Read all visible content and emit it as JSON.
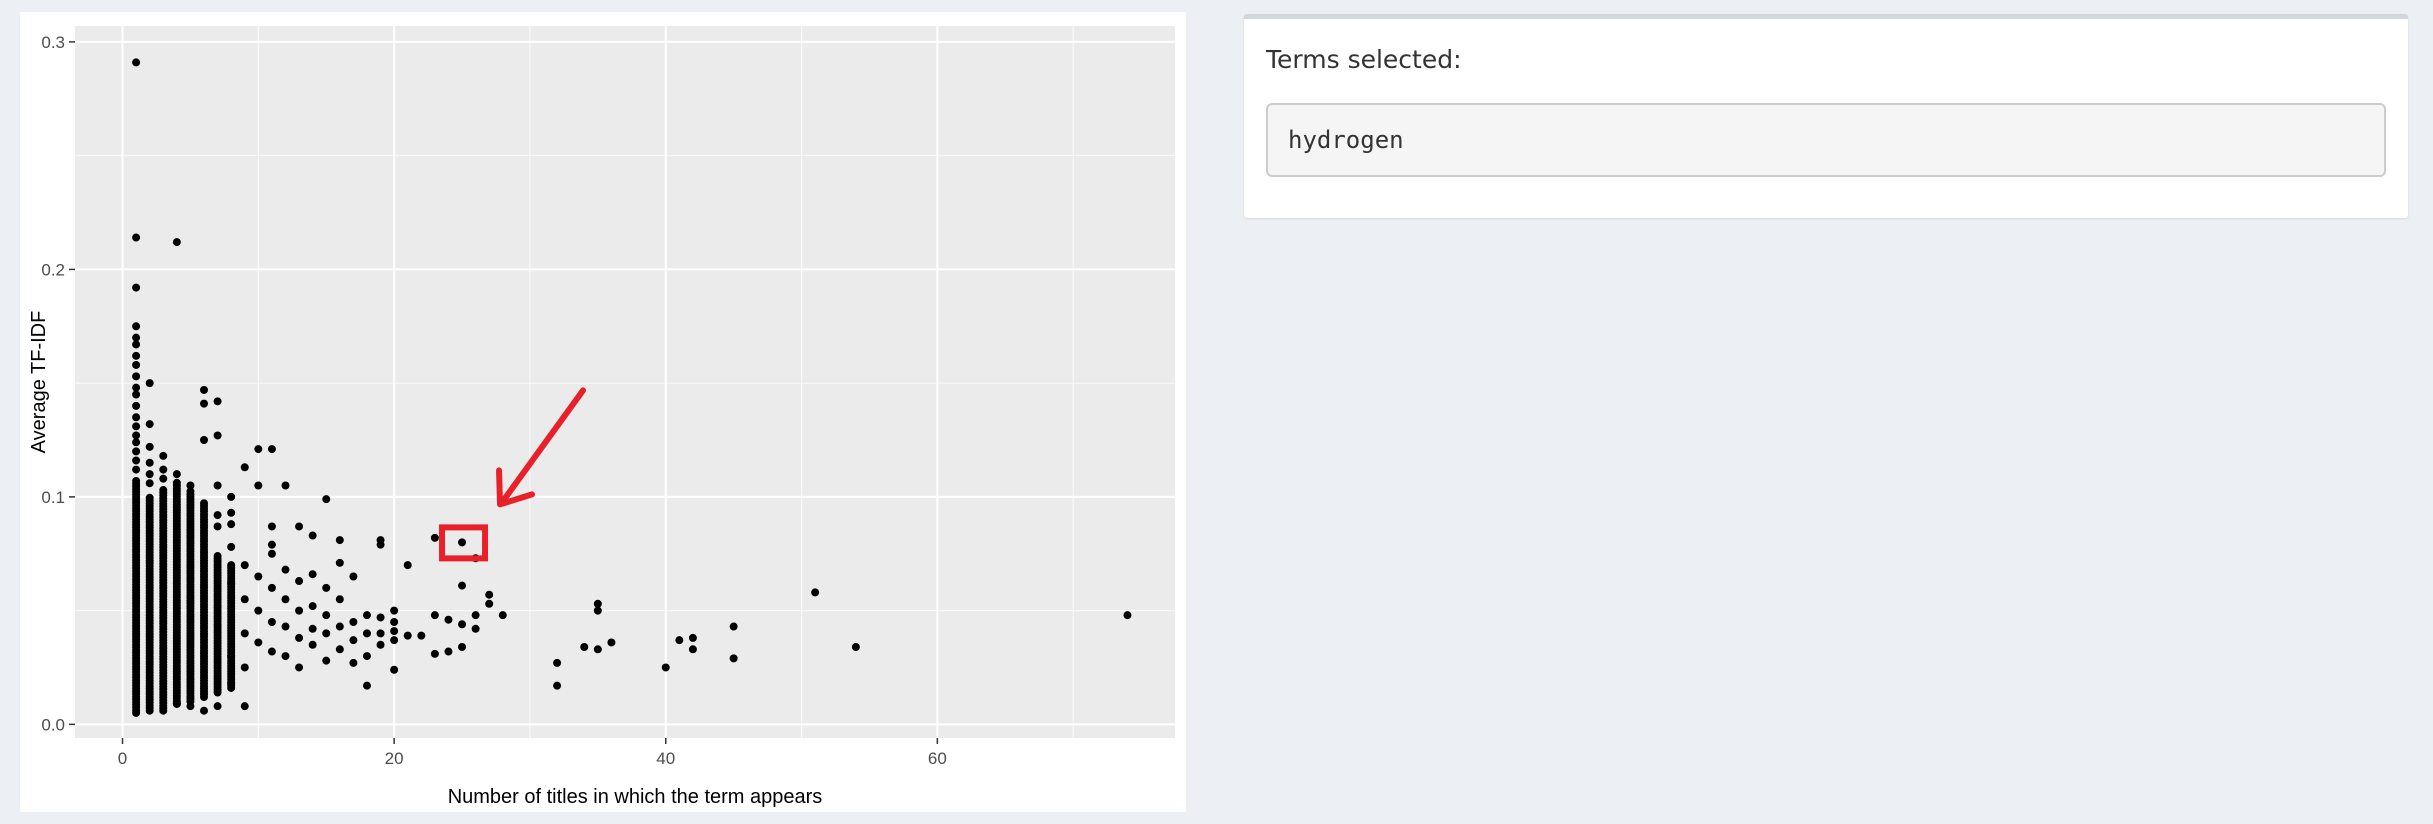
{
  "chart_data": {
    "type": "scatter",
    "xlabel": "Number of titles in which the term appears",
    "ylabel": "Average TF-IDF",
    "xlim": [
      -3.5,
      77.5
    ],
    "ylim": [
      -0.006,
      0.307
    ],
    "x_ticks": [
      0,
      20,
      40,
      60
    ],
    "y_ticks": [
      0.0,
      0.1,
      0.2,
      0.3
    ],
    "y_tick_labels": [
      "0.0",
      "0.1",
      "0.2",
      "0.3"
    ],
    "grid": true,
    "point_color": "#000000",
    "panel_color": "#ebebeb",
    "highlight": {
      "x": 25,
      "y": 0.08,
      "color": "#e8202a"
    },
    "dense_columns": [
      {
        "x": 1,
        "ymin": 0.005,
        "ymax": 0.108
      },
      {
        "x": 2,
        "ymin": 0.006,
        "ymax": 0.1
      },
      {
        "x": 3,
        "ymin": 0.007,
        "ymax": 0.104
      },
      {
        "x": 4,
        "ymin": 0.009,
        "ymax": 0.107
      },
      {
        "x": 5,
        "ymin": 0.01,
        "ymax": 0.103
      },
      {
        "x": 6,
        "ymin": 0.012,
        "ymax": 0.098
      },
      {
        "x": 7,
        "ymin": 0.014,
        "ymax": 0.074
      },
      {
        "x": 8,
        "ymin": 0.016,
        "ymax": 0.07
      }
    ],
    "points": [
      {
        "x": 1,
        "y": 0.291
      },
      {
        "x": 1,
        "y": 0.214
      },
      {
        "x": 4,
        "y": 0.212
      },
      {
        "x": 1,
        "y": 0.192
      },
      {
        "x": 1,
        "y": 0.175
      },
      {
        "x": 1,
        "y": 0.17
      },
      {
        "x": 1,
        "y": 0.167
      },
      {
        "x": 1,
        "y": 0.162
      },
      {
        "x": 1,
        "y": 0.158
      },
      {
        "x": 1,
        "y": 0.153
      },
      {
        "x": 1,
        "y": 0.148
      },
      {
        "x": 1,
        "y": 0.145
      },
      {
        "x": 1,
        "y": 0.14
      },
      {
        "x": 1,
        "y": 0.135
      },
      {
        "x": 1,
        "y": 0.131
      },
      {
        "x": 1,
        "y": 0.127
      },
      {
        "x": 1,
        "y": 0.124
      },
      {
        "x": 1,
        "y": 0.12
      },
      {
        "x": 1,
        "y": 0.116
      },
      {
        "x": 1,
        "y": 0.112
      },
      {
        "x": 2,
        "y": 0.15
      },
      {
        "x": 2,
        "y": 0.132
      },
      {
        "x": 2,
        "y": 0.122
      },
      {
        "x": 2,
        "y": 0.115
      },
      {
        "x": 2,
        "y": 0.11
      },
      {
        "x": 2,
        "y": 0.106
      },
      {
        "x": 3,
        "y": 0.118
      },
      {
        "x": 3,
        "y": 0.112
      },
      {
        "x": 3,
        "y": 0.108
      },
      {
        "x": 4,
        "y": 0.11
      },
      {
        "x": 6,
        "y": 0.147
      },
      {
        "x": 6,
        "y": 0.141
      },
      {
        "x": 7,
        "y": 0.142
      },
      {
        "x": 7,
        "y": 0.127
      },
      {
        "x": 6,
        "y": 0.125
      },
      {
        "x": 5,
        "y": 0.105
      },
      {
        "x": 7,
        "y": 0.105
      },
      {
        "x": 7,
        "y": 0.092
      },
      {
        "x": 7,
        "y": 0.087
      },
      {
        "x": 8,
        "y": 0.1
      },
      {
        "x": 8,
        "y": 0.093
      },
      {
        "x": 8,
        "y": 0.088
      },
      {
        "x": 8,
        "y": 0.078
      },
      {
        "x": 9,
        "y": 0.113
      },
      {
        "x": 10,
        "y": 0.121
      },
      {
        "x": 11,
        "y": 0.121
      },
      {
        "x": 10,
        "y": 0.105
      },
      {
        "x": 11,
        "y": 0.087
      },
      {
        "x": 11,
        "y": 0.075
      },
      {
        "x": 11,
        "y": 0.079
      },
      {
        "x": 13,
        "y": 0.087
      },
      {
        "x": 12,
        "y": 0.105
      },
      {
        "x": 15,
        "y": 0.099
      },
      {
        "x": 14,
        "y": 0.083
      },
      {
        "x": 16,
        "y": 0.081
      },
      {
        "x": 16,
        "y": 0.071
      },
      {
        "x": 17,
        "y": 0.065
      },
      {
        "x": 19,
        "y": 0.081
      },
      {
        "x": 19,
        "y": 0.079
      },
      {
        "x": 21,
        "y": 0.07
      },
      {
        "x": 23,
        "y": 0.082
      },
      {
        "x": 25,
        "y": 0.08
      },
      {
        "x": 26,
        "y": 0.073
      },
      {
        "x": 25,
        "y": 0.061
      },
      {
        "x": 27,
        "y": 0.057
      },
      {
        "x": 27,
        "y": 0.053
      },
      {
        "x": 26,
        "y": 0.048
      },
      {
        "x": 28,
        "y": 0.048
      },
      {
        "x": 24,
        "y": 0.046
      },
      {
        "x": 25,
        "y": 0.044
      },
      {
        "x": 26,
        "y": 0.042
      },
      {
        "x": 23,
        "y": 0.048
      },
      {
        "x": 22,
        "y": 0.039
      },
      {
        "x": 21,
        "y": 0.039
      },
      {
        "x": 23,
        "y": 0.031
      },
      {
        "x": 24,
        "y": 0.032
      },
      {
        "x": 25,
        "y": 0.034
      },
      {
        "x": 20,
        "y": 0.05
      },
      {
        "x": 20,
        "y": 0.045
      },
      {
        "x": 20,
        "y": 0.041
      },
      {
        "x": 20,
        "y": 0.037
      },
      {
        "x": 19,
        "y": 0.047
      },
      {
        "x": 19,
        "y": 0.04
      },
      {
        "x": 19,
        "y": 0.035
      },
      {
        "x": 18,
        "y": 0.048
      },
      {
        "x": 18,
        "y": 0.04
      },
      {
        "x": 18,
        "y": 0.03
      },
      {
        "x": 17,
        "y": 0.045
      },
      {
        "x": 17,
        "y": 0.037
      },
      {
        "x": 17,
        "y": 0.027
      },
      {
        "x": 16,
        "y": 0.055
      },
      {
        "x": 16,
        "y": 0.043
      },
      {
        "x": 16,
        "y": 0.033
      },
      {
        "x": 15,
        "y": 0.06
      },
      {
        "x": 15,
        "y": 0.048
      },
      {
        "x": 15,
        "y": 0.04
      },
      {
        "x": 14,
        "y": 0.066
      },
      {
        "x": 14,
        "y": 0.052
      },
      {
        "x": 14,
        "y": 0.042
      },
      {
        "x": 13,
        "y": 0.063
      },
      {
        "x": 13,
        "y": 0.05
      },
      {
        "x": 13,
        "y": 0.038
      },
      {
        "x": 12,
        "y": 0.068
      },
      {
        "x": 12,
        "y": 0.055
      },
      {
        "x": 12,
        "y": 0.043
      },
      {
        "x": 11,
        "y": 0.06
      },
      {
        "x": 11,
        "y": 0.045
      },
      {
        "x": 11,
        "y": 0.032
      },
      {
        "x": 10,
        "y": 0.065
      },
      {
        "x": 10,
        "y": 0.05
      },
      {
        "x": 10,
        "y": 0.036
      },
      {
        "x": 9,
        "y": 0.07
      },
      {
        "x": 9,
        "y": 0.055
      },
      {
        "x": 9,
        "y": 0.04
      },
      {
        "x": 9,
        "y": 0.025
      },
      {
        "x": 9,
        "y": 0.008
      },
      {
        "x": 8,
        "y": 0.062
      },
      {
        "x": 8,
        "y": 0.03
      },
      {
        "x": 8,
        "y": 0.018
      },
      {
        "x": 12,
        "y": 0.03
      },
      {
        "x": 13,
        "y": 0.025
      },
      {
        "x": 14,
        "y": 0.035
      },
      {
        "x": 15,
        "y": 0.028
      },
      {
        "x": 18,
        "y": 0.017
      },
      {
        "x": 20,
        "y": 0.024
      },
      {
        "x": 6,
        "y": 0.006
      },
      {
        "x": 5,
        "y": 0.008
      },
      {
        "x": 4,
        "y": 0.009
      },
      {
        "x": 7,
        "y": 0.008
      },
      {
        "x": 3,
        "y": 0.006
      },
      {
        "x": 32,
        "y": 0.027
      },
      {
        "x": 32,
        "y": 0.017
      },
      {
        "x": 34,
        "y": 0.034
      },
      {
        "x": 35,
        "y": 0.033
      },
      {
        "x": 35,
        "y": 0.05
      },
      {
        "x": 35,
        "y": 0.053
      },
      {
        "x": 36,
        "y": 0.036
      },
      {
        "x": 40,
        "y": 0.025
      },
      {
        "x": 41,
        "y": 0.037
      },
      {
        "x": 42,
        "y": 0.038
      },
      {
        "x": 42,
        "y": 0.033
      },
      {
        "x": 45,
        "y": 0.043
      },
      {
        "x": 45,
        "y": 0.029
      },
      {
        "x": 51,
        "y": 0.058
      },
      {
        "x": 54,
        "y": 0.034
      },
      {
        "x": 74,
        "y": 0.048
      }
    ]
  },
  "panel": {
    "terms_label": "Terms selected:",
    "terms_value": "hydrogen"
  }
}
